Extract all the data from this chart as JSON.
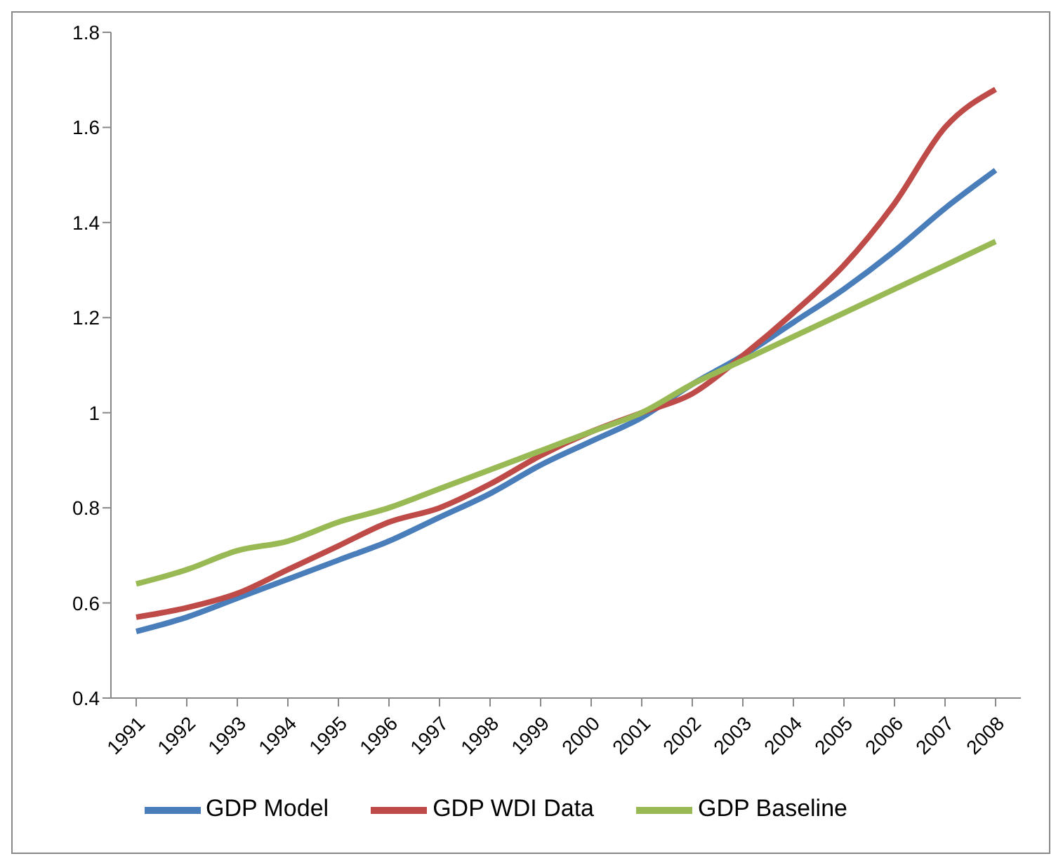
{
  "chart_data": {
    "type": "line",
    "categories": [
      "1991",
      "1992",
      "1993",
      "1994",
      "1995",
      "1996",
      "1997",
      "1998",
      "1999",
      "2000",
      "2001",
      "2002",
      "2003",
      "2004",
      "2005",
      "2006",
      "2007",
      "2008"
    ],
    "series": [
      {
        "name": "GDP Model",
        "color": "#4a7ebb",
        "values": [
          0.54,
          0.57,
          0.61,
          0.65,
          0.69,
          0.73,
          0.78,
          0.83,
          0.89,
          0.94,
          0.99,
          1.06,
          1.12,
          1.19,
          1.26,
          1.34,
          1.43,
          1.51
        ]
      },
      {
        "name": "GDP WDI Data",
        "color": "#be4b48",
        "values": [
          0.57,
          0.59,
          0.62,
          0.67,
          0.72,
          0.77,
          0.8,
          0.85,
          0.91,
          0.96,
          1.0,
          1.04,
          1.12,
          1.21,
          1.31,
          1.44,
          1.6,
          1.68
        ]
      },
      {
        "name": "GDP Baseline",
        "color": "#98b954",
        "values": [
          0.64,
          0.67,
          0.71,
          0.73,
          0.77,
          0.8,
          0.84,
          0.88,
          0.92,
          0.96,
          1.0,
          1.06,
          1.11,
          1.16,
          1.21,
          1.26,
          1.31,
          1.36
        ]
      }
    ],
    "ylim": [
      0.4,
      1.8
    ],
    "yticks": [
      0.4,
      0.6,
      0.8,
      1,
      1.2,
      1.4,
      1.6,
      1.8
    ],
    "grid": false,
    "legend": "bottom",
    "marker": "none",
    "line_style": "solid"
  }
}
